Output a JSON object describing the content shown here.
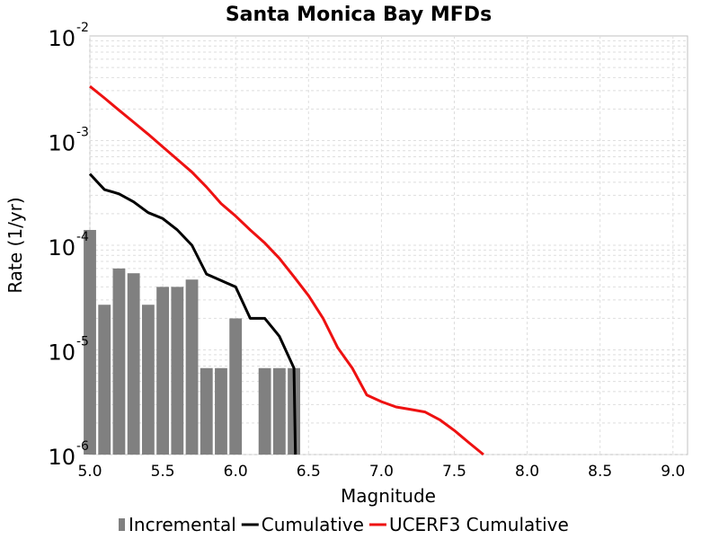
{
  "chart_data": {
    "type": "bar+line",
    "title": "Santa Monica Bay MFDs",
    "xlabel": "Magnitude",
    "ylabel": "Rate (1/yr)",
    "xlim": [
      5.0,
      9.1
    ],
    "ylim": [
      1e-06,
      0.01
    ],
    "yscale": "log",
    "grid": true,
    "legend_position": "bottom",
    "x_ticks": [
      "5.0",
      "5.5",
      "6.0",
      "6.5",
      "7.0",
      "7.5",
      "8.0",
      "8.5",
      "9.0"
    ],
    "y_ticks": [
      {
        "base": "10",
        "exp": "-6"
      },
      {
        "base": "10",
        "exp": "-5"
      },
      {
        "base": "10",
        "exp": "-4"
      },
      {
        "base": "10",
        "exp": "-3"
      },
      {
        "base": "10",
        "exp": "-2"
      }
    ],
    "series": [
      {
        "name": "Incremental",
        "kind": "bar",
        "color": "#808080",
        "bin_width": 0.1,
        "x": [
          5.0,
          5.1,
          5.2,
          5.3,
          5.4,
          5.5,
          5.6,
          5.7,
          5.8,
          5.9,
          6.0,
          6.2,
          6.3,
          6.4
        ],
        "values": [
          0.00014,
          2.7e-05,
          6e-05,
          5.4e-05,
          2.7e-05,
          4e-05,
          4e-05,
          4.7e-05,
          6.7e-06,
          6.7e-06,
          2e-05,
          6.7e-06,
          6.7e-06,
          6.7e-06
        ]
      },
      {
        "name": "Cumulative",
        "kind": "line",
        "color": "#000000",
        "x": [
          5.0,
          5.1,
          5.2,
          5.3,
          5.4,
          5.5,
          5.6,
          5.7,
          5.8,
          5.9,
          6.0,
          6.1,
          6.2,
          6.3,
          6.4,
          6.41
        ],
        "values": [
          0.00048,
          0.00034,
          0.00031,
          0.00026,
          0.000205,
          0.00018,
          0.00014,
          0.0001,
          5.3e-05,
          4.6e-05,
          4e-05,
          2e-05,
          2e-05,
          1.35e-05,
          6.7e-06,
          1e-06
        ]
      },
      {
        "name": "UCERF3 Cumulative",
        "kind": "line",
        "color": "#ee1111",
        "x": [
          5.0,
          5.1,
          5.2,
          5.3,
          5.4,
          5.5,
          5.6,
          5.7,
          5.8,
          5.9,
          6.0,
          6.1,
          6.2,
          6.3,
          6.4,
          6.5,
          6.6,
          6.7,
          6.8,
          6.9,
          7.0,
          7.1,
          7.2,
          7.3,
          7.4,
          7.5,
          7.6,
          7.7
        ],
        "values": [
          0.0033,
          0.00255,
          0.00195,
          0.0015,
          0.00115,
          0.00087,
          0.00066,
          0.0005,
          0.00036,
          0.00025,
          0.00019,
          0.00014,
          0.000105,
          7.5e-05,
          5e-05,
          3.3e-05,
          2e-05,
          1.05e-05,
          6.7e-06,
          3.7e-06,
          3.2e-06,
          2.85e-06,
          2.7e-06,
          2.55e-06,
          2.15e-06,
          1.7e-06,
          1.3e-06,
          1e-06
        ]
      }
    ]
  }
}
